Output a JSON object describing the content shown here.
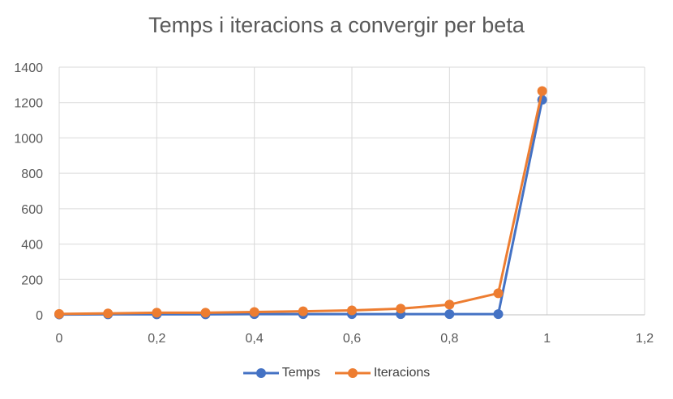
{
  "chart_data": {
    "type": "line",
    "title": "Temps i iteracions a convergir per beta",
    "xlabel": "",
    "ylabel": "",
    "xlim": [
      0,
      1.2
    ],
    "ylim": [
      0,
      1400
    ],
    "x_ticks": [
      "0",
      "0,2",
      "0,4",
      "0,6",
      "0,8",
      "1",
      "1,2"
    ],
    "x_tick_values": [
      0,
      0.2,
      0.4,
      0.6,
      0.8,
      1.0,
      1.2
    ],
    "y_ticks": [
      "0",
      "200",
      "400",
      "600",
      "800",
      "1000",
      "1200",
      "1400"
    ],
    "y_tick_values": [
      0,
      200,
      400,
      600,
      800,
      1000,
      1200,
      1400
    ],
    "grid": true,
    "legend_position": "bottom",
    "series": [
      {
        "name": "Temps",
        "color": "#4472C4",
        "x": [
          0.0,
          0.1,
          0.2,
          0.3,
          0.4,
          0.5,
          0.6,
          0.7,
          0.8,
          0.9,
          0.99
        ],
        "values": [
          2,
          3,
          3,
          3,
          4,
          4,
          4,
          4,
          4,
          4,
          1215
        ]
      },
      {
        "name": "Iteracions",
        "color": "#ED7D31",
        "x": [
          0.0,
          0.1,
          0.2,
          0.3,
          0.4,
          0.5,
          0.6,
          0.7,
          0.8,
          0.9,
          0.99
        ],
        "values": [
          5,
          8,
          12,
          12,
          16,
          20,
          25,
          35,
          58,
          122,
          1265
        ]
      }
    ]
  }
}
